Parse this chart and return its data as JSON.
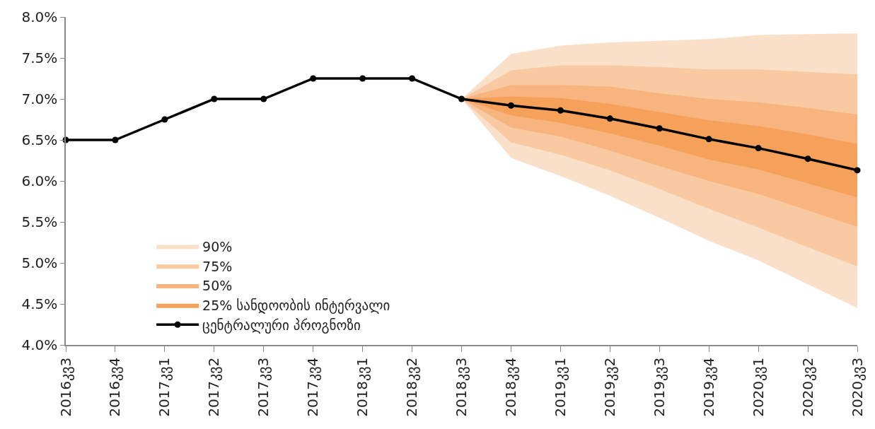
{
  "chart_data": {
    "type": "line",
    "categories": [
      "2016კვ3",
      "2016კვ4",
      "2017კვ1",
      "2017კვ2",
      "2017კვ3",
      "2017კვ4",
      "2018კვ1",
      "2018კვ2",
      "2018კვ3",
      "2018კვ4",
      "2019კვ1",
      "2019კვ2",
      "2019კვ3",
      "2019კვ4",
      "2020კვ1",
      "2020კვ2",
      "2020კვ3"
    ],
    "series": [
      {
        "name": "90%",
        "type": "area",
        "color": "#fae0c9",
        "values": [
          null,
          null,
          null,
          null,
          null,
          null,
          null,
          null,
          null,
          null,
          null,
          null,
          null,
          null,
          null,
          null,
          null
        ],
        "lower": [
          null,
          null,
          null,
          null,
          null,
          null,
          null,
          null,
          7.0,
          6.28,
          6.06,
          5.82,
          5.55,
          5.27,
          5.03,
          4.74,
          4.45
        ],
        "upper": [
          null,
          null,
          null,
          null,
          null,
          null,
          null,
          null,
          7.0,
          7.55,
          7.65,
          7.69,
          7.71,
          7.73,
          7.78,
          7.79,
          7.8
        ]
      },
      {
        "name": "75%",
        "type": "area",
        "color": "#f9caa2",
        "values": [
          null,
          null,
          null,
          null,
          null,
          null,
          null,
          null,
          null,
          null,
          null,
          null,
          null,
          null,
          null,
          null,
          null
        ],
        "lower": [
          null,
          null,
          null,
          null,
          null,
          null,
          null,
          null,
          7.0,
          6.47,
          6.32,
          6.13,
          5.9,
          5.66,
          5.43,
          5.19,
          4.96
        ],
        "upper": [
          null,
          null,
          null,
          null,
          null,
          null,
          null,
          null,
          7.0,
          7.35,
          7.41,
          7.41,
          7.39,
          7.36,
          7.36,
          7.33,
          7.3
        ]
      },
      {
        "name": "50%",
        "type": "area",
        "color": "#f8b47e",
        "values": [
          null,
          null,
          null,
          null,
          null,
          null,
          null,
          null,
          null,
          null,
          null,
          null,
          null,
          null,
          null,
          null,
          null
        ],
        "lower": [
          null,
          null,
          null,
          null,
          null,
          null,
          null,
          null,
          7.0,
          6.65,
          6.54,
          6.37,
          6.18,
          6.0,
          5.84,
          5.64,
          5.44
        ],
        "upper": [
          null,
          null,
          null,
          null,
          null,
          null,
          null,
          null,
          7.0,
          7.17,
          7.17,
          7.15,
          7.07,
          7.0,
          6.96,
          6.89,
          6.81
        ]
      },
      {
        "name": "25% სანდოობის ინტერვალი",
        "type": "area",
        "color": "#f6a15a",
        "values": [
          null,
          null,
          null,
          null,
          null,
          null,
          null,
          null,
          null,
          null,
          null,
          null,
          null,
          null,
          null,
          null,
          null
        ],
        "lower": [
          null,
          null,
          null,
          null,
          null,
          null,
          null,
          null,
          7.0,
          6.8,
          6.71,
          6.58,
          6.43,
          6.26,
          6.14,
          5.97,
          5.8
        ],
        "upper": [
          null,
          null,
          null,
          null,
          null,
          null,
          null,
          null,
          7.0,
          7.03,
          7.01,
          6.94,
          6.84,
          6.74,
          6.67,
          6.57,
          6.45
        ]
      },
      {
        "name": "ცენტრალური პროგნოზი",
        "type": "line",
        "color": "#000000",
        "values": [
          6.5,
          6.5,
          6.75,
          7.0,
          7.0,
          7.25,
          7.25,
          7.25,
          7.0,
          6.92,
          6.86,
          6.76,
          6.64,
          6.51,
          6.4,
          6.27,
          6.13
        ]
      }
    ],
    "ylim": [
      4.0,
      8.0
    ],
    "yticks": [
      {
        "value": 4.0,
        "label": "4.0%"
      },
      {
        "value": 4.5,
        "label": "4.5%"
      },
      {
        "value": 5.0,
        "label": "5.0%"
      },
      {
        "value": 5.5,
        "label": "5.5%"
      },
      {
        "value": 6.0,
        "label": "6.0%"
      },
      {
        "value": 6.5,
        "label": "6.5%"
      },
      {
        "value": 7.0,
        "label": "7.0%"
      },
      {
        "value": 7.5,
        "label": "7.5%"
      },
      {
        "value": 8.0,
        "label": "8.0%"
      }
    ],
    "grid": false,
    "legend": "bottom left",
    "marker": "circle",
    "line_style": "solid"
  }
}
